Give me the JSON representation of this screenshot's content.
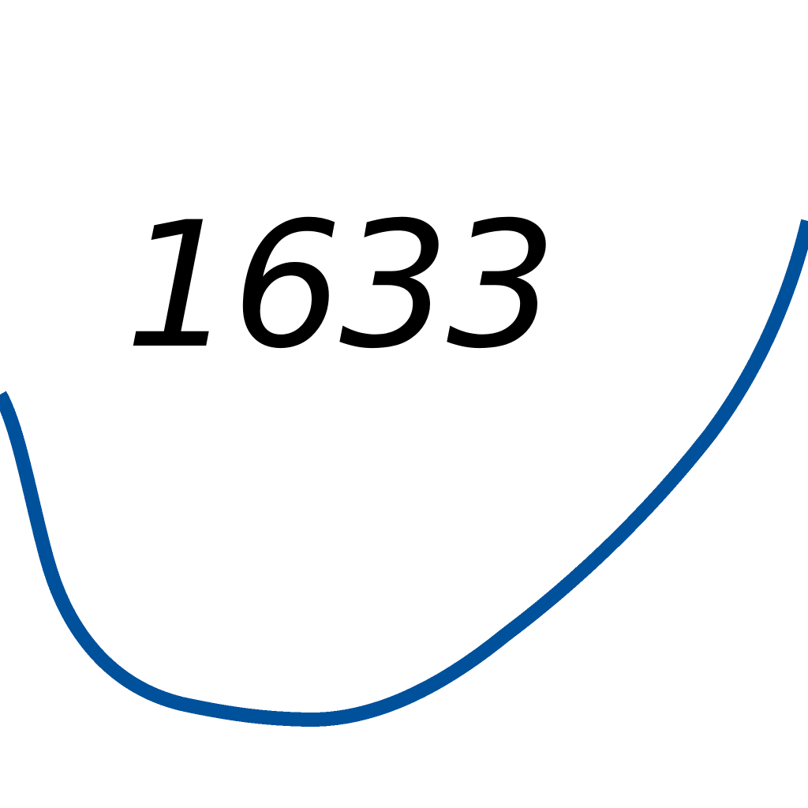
{
  "map": {
    "contour": {
      "elevation_label": "1633",
      "line_color": "#00519c",
      "label_color": "#000000"
    },
    "background_color": "#ffffff"
  }
}
